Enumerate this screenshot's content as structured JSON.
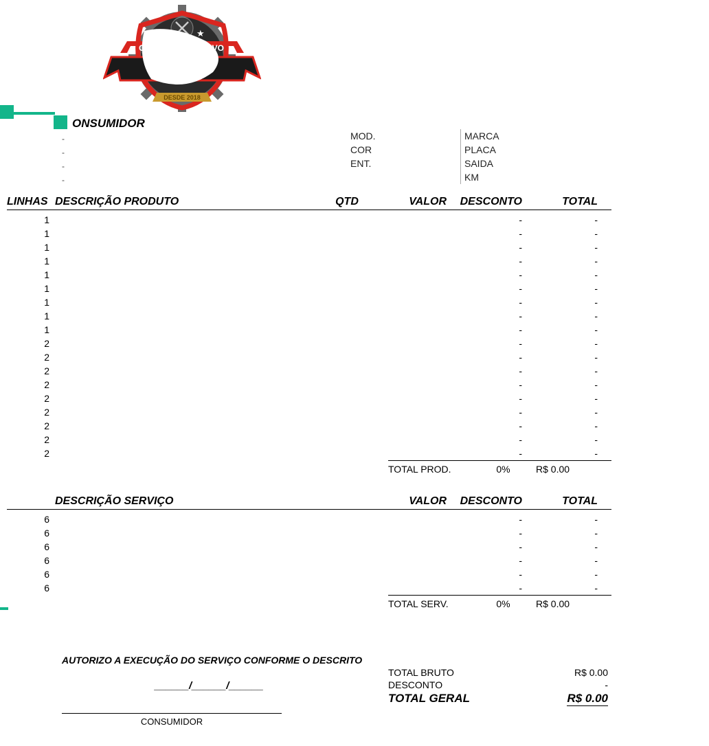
{
  "colors": {
    "teal": "#13b58a",
    "logo_red": "#d9261f",
    "logo_dark": "#2b2b2b",
    "logo_gear": "#6a6a6a",
    "logo_gold": "#c99a2e"
  },
  "customer_label": "ONSUMIDOR",
  "vehicle": {
    "mod_label": "MOD.",
    "cor_label": "COR",
    "ent_label": "ENT.",
    "marca_label": "MARCA",
    "placa_label": "PLACA",
    "saida_label": "SAIDA",
    "km_label": "KM"
  },
  "headers": {
    "linhas": "LINHAS",
    "descricao_produto": "DESCRIÇÃO PRODUTO",
    "descricao_servico": "DESCRIÇÃO SERVIÇO",
    "qtd": "QTD",
    "valor": "VALOR",
    "desconto": "DESCONTO",
    "total": "TOTAL"
  },
  "products": {
    "linhas": [
      "1",
      "1",
      "1",
      "1",
      "1",
      "1",
      "1",
      "1",
      "1",
      "2",
      "2",
      "2",
      "2",
      "2",
      "2",
      "2",
      "2",
      "2"
    ],
    "desconto_placeholder": "-",
    "total_placeholder": "-",
    "subtotal_label": "TOTAL PROD.",
    "subtotal_pct": "0%",
    "subtotal_value": "R$ 0.00"
  },
  "services": {
    "linhas": [
      "6",
      "6",
      "6",
      "6",
      "6",
      "6"
    ],
    "desconto_placeholder": "-",
    "total_placeholder": "-",
    "subtotal_label": "TOTAL SERV.",
    "subtotal_pct": "0%",
    "subtotal_value": "R$ 0.00"
  },
  "auth_text": "AUTORIZO A EXECUÇÃO DO SERVIÇO CONFORME O DESCRITO",
  "date_line": "______/______/______",
  "sign_label": "CONSUMIDOR",
  "totals": {
    "bruto_label": "TOTAL BRUTO",
    "bruto_value": "R$ 0.00",
    "desconto_label": "DESCONTO",
    "desconto_value": "-",
    "geral_label": "TOTAL GERAL",
    "geral_value": "R$ 0.00"
  },
  "logo": {
    "banner_text_left": "C",
    "banner_text_right": "TIVO",
    "bottom_text": "DESDE 2018"
  }
}
